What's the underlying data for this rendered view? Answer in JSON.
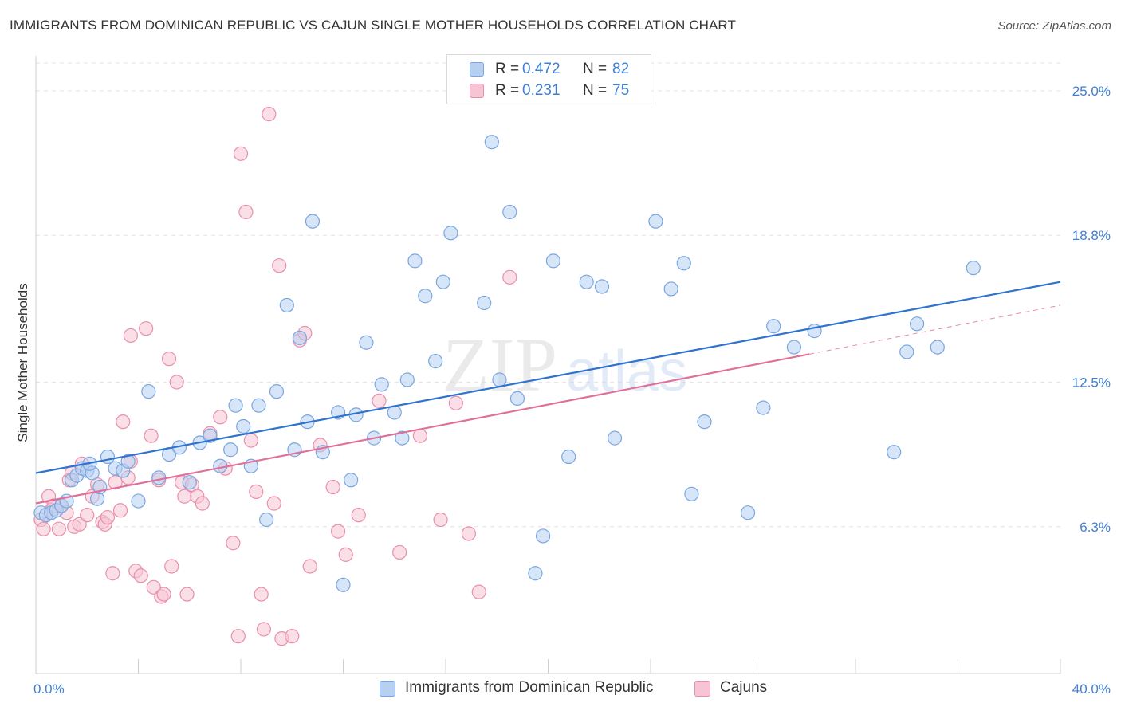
{
  "title": "IMMIGRANTS FROM DOMINICAN REPUBLIC VS CAJUN SINGLE MOTHER HOUSEHOLDS CORRELATION CHART",
  "source": "Source: ZipAtlas.com",
  "watermark": {
    "zip": "ZIP",
    "atlas": "atlas"
  },
  "legend": {
    "rows": [
      {
        "r_label": "R =",
        "r_value": "0.472",
        "n_label": "N =",
        "n_value": "82"
      },
      {
        "r_label": "R =",
        "r_value": "0.231",
        "n_label": "N =",
        "n_value": "75"
      }
    ]
  },
  "colors": {
    "blue_fill": "#b7d0f2",
    "blue_stroke": "#7aa6e0",
    "blue_line": "#2f72cf",
    "pink_fill": "#f7c4d3",
    "pink_stroke": "#e98fac",
    "pink_line": "#e0709a",
    "tick_text": "#3f7fd6"
  },
  "chart_data": {
    "type": "scatter",
    "title": "IMMIGRANTS FROM DOMINICAN REPUBLIC VS CAJUN SINGLE MOTHER HOUSEHOLDS CORRELATION CHART",
    "xlabel": "",
    "ylabel": "Single Mother Households",
    "xlim": [
      0,
      40
    ],
    "ylim": [
      0,
      26.5
    ],
    "x_tick_labels": [
      "0.0%",
      "40.0%"
    ],
    "y_ticks": [
      6.3,
      12.5,
      18.8,
      25.0
    ],
    "y_tick_labels": [
      "6.3%",
      "12.5%",
      "18.8%",
      "25.0%"
    ],
    "grid": true,
    "legend_position": "top-center",
    "series": [
      {
        "name": "Immigrants from Dominican Republic",
        "r": 0.472,
        "n": 82,
        "trend": {
          "x": [
            0,
            40
          ],
          "y": [
            8.6,
            16.8
          ]
        },
        "points": [
          [
            0.2,
            6.9
          ],
          [
            0.4,
            6.8
          ],
          [
            0.6,
            6.9
          ],
          [
            0.8,
            7.0
          ],
          [
            1.0,
            7.2
          ],
          [
            1.2,
            7.4
          ],
          [
            1.4,
            8.3
          ],
          [
            1.6,
            8.5
          ],
          [
            1.8,
            8.8
          ],
          [
            2.0,
            8.7
          ],
          [
            2.2,
            8.6
          ],
          [
            2.4,
            7.5
          ],
          [
            2.5,
            8.0
          ],
          [
            2.8,
            9.3
          ],
          [
            3.1,
            8.8
          ],
          [
            3.4,
            8.7
          ],
          [
            3.6,
            9.1
          ],
          [
            4.0,
            7.4
          ],
          [
            4.4,
            12.1
          ],
          [
            4.8,
            8.4
          ],
          [
            5.2,
            9.4
          ],
          [
            5.6,
            9.7
          ],
          [
            6.0,
            8.2
          ],
          [
            6.4,
            9.9
          ],
          [
            6.8,
            10.2
          ],
          [
            7.2,
            8.9
          ],
          [
            7.6,
            9.6
          ],
          [
            7.8,
            11.5
          ],
          [
            8.1,
            10.6
          ],
          [
            8.4,
            8.9
          ],
          [
            8.7,
            11.5
          ],
          [
            9.0,
            6.6
          ],
          [
            9.4,
            12.1
          ],
          [
            9.8,
            15.8
          ],
          [
            10.1,
            9.6
          ],
          [
            10.3,
            14.4
          ],
          [
            10.6,
            10.8
          ],
          [
            10.8,
            19.4
          ],
          [
            11.2,
            9.5
          ],
          [
            11.8,
            11.2
          ],
          [
            12.3,
            8.3
          ],
          [
            12.0,
            3.8
          ],
          [
            12.5,
            11.1
          ],
          [
            12.9,
            14.2
          ],
          [
            13.2,
            10.1
          ],
          [
            13.5,
            12.4
          ],
          [
            14.0,
            11.2
          ],
          [
            14.5,
            12.6
          ],
          [
            14.8,
            17.7
          ],
          [
            14.3,
            10.1
          ],
          [
            15.2,
            16.2
          ],
          [
            15.6,
            13.4
          ],
          [
            15.9,
            16.8
          ],
          [
            16.2,
            18.9
          ],
          [
            17.8,
            22.8
          ],
          [
            17.5,
            15.9
          ],
          [
            18.1,
            12.6
          ],
          [
            18.5,
            19.8
          ],
          [
            18.8,
            11.8
          ],
          [
            19.5,
            4.3
          ],
          [
            19.8,
            5.9
          ],
          [
            20.2,
            17.7
          ],
          [
            20.8,
            9.3
          ],
          [
            21.5,
            16.8
          ],
          [
            22.1,
            16.6
          ],
          [
            22.6,
            10.1
          ],
          [
            24.2,
            19.4
          ],
          [
            24.8,
            16.5
          ],
          [
            25.3,
            17.6
          ],
          [
            25.6,
            7.7
          ],
          [
            26.1,
            10.8
          ],
          [
            27.8,
            6.9
          ],
          [
            28.4,
            11.4
          ],
          [
            28.8,
            14.9
          ],
          [
            29.6,
            14.0
          ],
          [
            30.4,
            14.7
          ],
          [
            33.5,
            9.5
          ],
          [
            34.0,
            13.8
          ],
          [
            34.4,
            15.0
          ],
          [
            35.2,
            14.0
          ],
          [
            36.6,
            17.4
          ],
          [
            2.1,
            9.0
          ]
        ]
      },
      {
        "name": "Cajuns",
        "r": 0.231,
        "n": 75,
        "trend": {
          "x": [
            0,
            30.2
          ],
          "y": [
            7.3,
            13.7
          ]
        },
        "trend_extension": {
          "x": [
            30.2,
            40
          ],
          "y": [
            13.7,
            15.8
          ]
        },
        "points": [
          [
            0.2,
            6.6
          ],
          [
            0.3,
            6.2
          ],
          [
            0.5,
            7.6
          ],
          [
            0.6,
            7.0
          ],
          [
            0.7,
            7.2
          ],
          [
            0.9,
            6.2
          ],
          [
            1.0,
            7.2
          ],
          [
            1.2,
            6.9
          ],
          [
            1.3,
            8.3
          ],
          [
            1.4,
            8.6
          ],
          [
            1.5,
            6.3
          ],
          [
            1.7,
            6.4
          ],
          [
            1.8,
            9.0
          ],
          [
            2.0,
            6.8
          ],
          [
            2.2,
            7.6
          ],
          [
            2.4,
            8.1
          ],
          [
            2.6,
            6.5
          ],
          [
            2.7,
            6.4
          ],
          [
            2.8,
            6.7
          ],
          [
            3.0,
            4.3
          ],
          [
            3.1,
            8.2
          ],
          [
            3.3,
            7.0
          ],
          [
            3.4,
            10.8
          ],
          [
            3.6,
            8.4
          ],
          [
            3.7,
            14.5
          ],
          [
            3.9,
            4.4
          ],
          [
            4.1,
            4.2
          ],
          [
            4.3,
            14.8
          ],
          [
            4.5,
            10.2
          ],
          [
            4.6,
            3.7
          ],
          [
            4.8,
            8.3
          ],
          [
            4.9,
            3.3
          ],
          [
            5.0,
            3.4
          ],
          [
            5.2,
            13.5
          ],
          [
            5.3,
            4.6
          ],
          [
            5.5,
            12.5
          ],
          [
            5.7,
            8.2
          ],
          [
            5.8,
            7.6
          ],
          [
            5.9,
            3.4
          ],
          [
            6.1,
            8.1
          ],
          [
            6.3,
            7.6
          ],
          [
            6.5,
            7.3
          ],
          [
            6.8,
            10.3
          ],
          [
            7.2,
            11.0
          ],
          [
            7.4,
            8.8
          ],
          [
            7.7,
            5.6
          ],
          [
            7.9,
            1.6
          ],
          [
            8.0,
            22.3
          ],
          [
            8.2,
            19.8
          ],
          [
            8.4,
            10.0
          ],
          [
            8.6,
            7.8
          ],
          [
            8.8,
            3.4
          ],
          [
            8.9,
            1.9
          ],
          [
            9.1,
            24.0
          ],
          [
            9.3,
            7.3
          ],
          [
            9.5,
            17.5
          ],
          [
            9.6,
            1.5
          ],
          [
            10.0,
            1.6
          ],
          [
            10.3,
            14.3
          ],
          [
            10.5,
            14.6
          ],
          [
            10.7,
            4.6
          ],
          [
            11.1,
            9.8
          ],
          [
            11.6,
            8.0
          ],
          [
            11.8,
            6.1
          ],
          [
            12.1,
            5.1
          ],
          [
            12.6,
            6.8
          ],
          [
            13.4,
            11.7
          ],
          [
            14.2,
            5.2
          ],
          [
            15.0,
            10.2
          ],
          [
            15.8,
            6.6
          ],
          [
            16.4,
            11.6
          ],
          [
            16.9,
            6.0
          ],
          [
            17.3,
            3.5
          ],
          [
            18.5,
            17.0
          ],
          [
            3.7,
            9.1
          ]
        ]
      }
    ]
  },
  "bottom_legend": [
    {
      "label": "Immigrants from Dominican Republic"
    },
    {
      "label": "Cajuns"
    }
  ]
}
